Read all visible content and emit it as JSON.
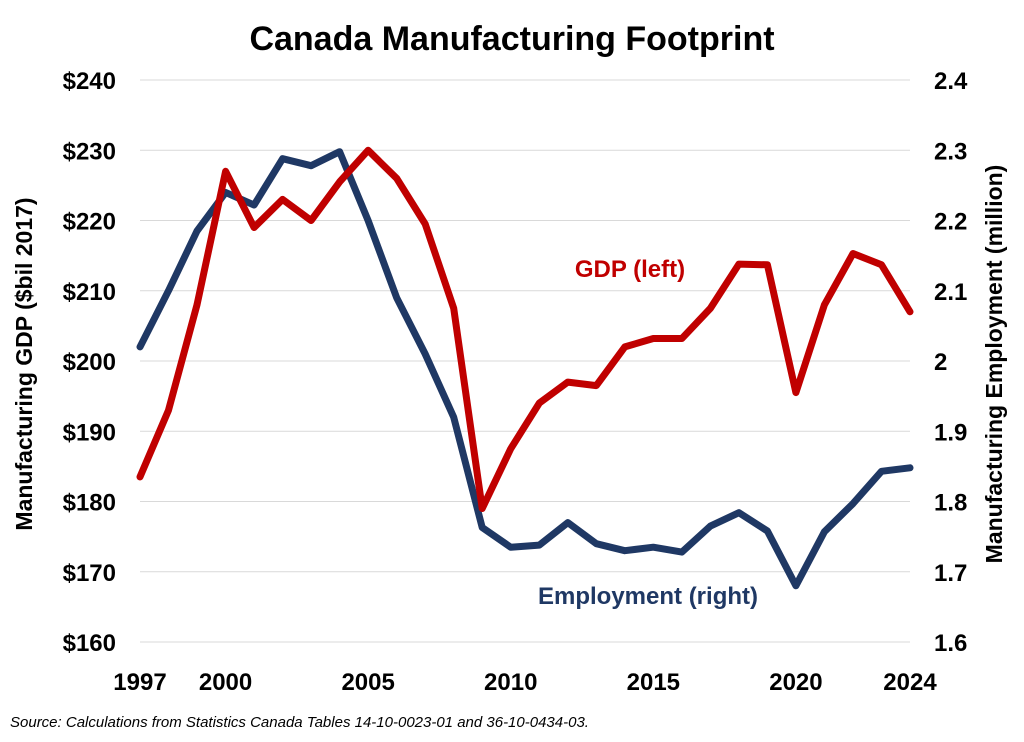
{
  "chart_data": {
    "type": "line",
    "title": "Canada Manufacturing Footprint",
    "ylabel_left": "Manufacturing GDP ($bil 2017)",
    "ylabel_right": "Manufacturing Employment (million)",
    "source": "Source: Calculations from Statistics Canada Tables 14-10-0023-01 and 36-10-0434-03.",
    "x": [
      1997,
      1998,
      1999,
      2000,
      2001,
      2002,
      2003,
      2004,
      2005,
      2006,
      2007,
      2008,
      2009,
      2010,
      2011,
      2012,
      2013,
      2014,
      2015,
      2016,
      2017,
      2018,
      2019,
      2020,
      2021,
      2022,
      2023,
      2024
    ],
    "x_ticks": [
      "1997",
      "2000",
      "2005",
      "2010",
      "2015",
      "2020",
      "2024"
    ],
    "xlim": [
      1997,
      2024
    ],
    "ylim_left": [
      160,
      240
    ],
    "yticks_left": [
      "$160",
      "$170",
      "$180",
      "$190",
      "$200",
      "$210",
      "$220",
      "$230",
      "$240"
    ],
    "ylim_right": [
      1.6,
      2.4
    ],
    "yticks_right": [
      "1.6",
      "1.7",
      "1.8",
      "1.9",
      "2",
      "2.1",
      "2.2",
      "2.3",
      "2.4"
    ],
    "grid": true,
    "series": [
      {
        "name": "GDP (left)",
        "axis": "left",
        "color": "#c00000",
        "values": [
          183.5,
          193,
          208,
          227,
          219,
          223,
          220,
          225.5,
          230,
          226,
          219.5,
          207.5,
          179,
          187.5,
          194,
          197,
          196.5,
          202,
          203.2,
          203.2,
          207.5,
          213.8,
          213.7,
          195.5,
          208,
          215.3,
          213.7,
          207
        ]
      },
      {
        "name": "Employment (right)",
        "axis": "right",
        "color": "#1f3864",
        "values": [
          2.02,
          2.1,
          2.185,
          2.24,
          2.222,
          2.288,
          2.278,
          2.298,
          2.2,
          2.09,
          2.01,
          1.92,
          1.763,
          1.735,
          1.738,
          1.77,
          1.74,
          1.73,
          1.735,
          1.728,
          1.765,
          1.784,
          1.758,
          1.68,
          1.757,
          1.797,
          1.843,
          1.848
        ]
      }
    ]
  }
}
